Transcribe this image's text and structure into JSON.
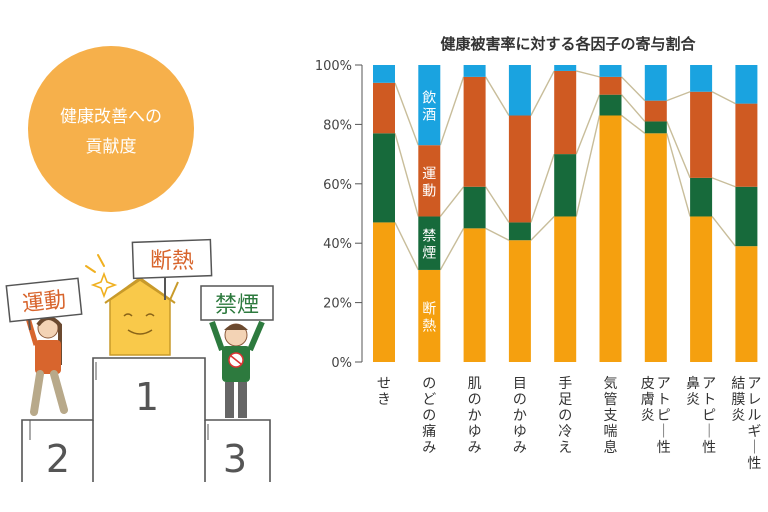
{
  "illustration": {
    "circle_line1": "健康改善への",
    "circle_line2": "貢献度",
    "sign_first": "断熱",
    "sign_second": "禁煙",
    "sign_third": "運動",
    "podium_1": "1",
    "podium_2": "2",
    "podium_3": "3",
    "colors": {
      "circle": "#f6b04b",
      "house": "#f9c94a",
      "shirt_green": "#2d7a3e",
      "shirt_orange": "#d8652d"
    }
  },
  "chart_data": {
    "type": "bar",
    "stacked": true,
    "title": "健康被害率に対する各因子の寄与割合",
    "categories": [
      "せき",
      "のどの痛み",
      "肌のかゆみ",
      "目のかゆみ",
      "手足の冷え",
      "気管支喘息",
      "アトピー性皮膚炎",
      "アトピー性鼻炎",
      "アレルギー性結膜炎"
    ],
    "category_lines": [
      [
        "せき"
      ],
      [
        "のどの痛み"
      ],
      [
        "肌のかゆみ"
      ],
      [
        "目のかゆみ"
      ],
      [
        "手足の冷え"
      ],
      [
        "気管支喘息"
      ],
      [
        "アトピー性",
        "皮膚炎"
      ],
      [
        "アトピー性",
        "鼻炎"
      ],
      [
        "アレルギー性",
        "結膜炎"
      ]
    ],
    "series": [
      {
        "name": "断熱",
        "color": "#f5a00f",
        "values": [
          47,
          31,
          45,
          41,
          49,
          83,
          77,
          49,
          39
        ]
      },
      {
        "name": "禁煙",
        "color": "#176a3b",
        "values": [
          30,
          18,
          14,
          6,
          21,
          7,
          4,
          13,
          20
        ]
      },
      {
        "name": "運動",
        "color": "#cf5a22",
        "values": [
          17,
          24,
          37,
          36,
          28,
          6,
          7,
          29,
          28
        ]
      },
      {
        "name": "飲酒",
        "color": "#1aa3e0",
        "values": [
          6,
          27,
          4,
          17,
          2,
          4,
          12,
          9,
          13
        ]
      }
    ],
    "y_ticks": [
      "0%",
      "20%",
      "40%",
      "60%",
      "80%",
      "100%"
    ],
    "ylim": [
      0,
      100
    ],
    "in_bar_labels_on_category": "のどの痛み",
    "connector_color": "#c8bd9a"
  }
}
